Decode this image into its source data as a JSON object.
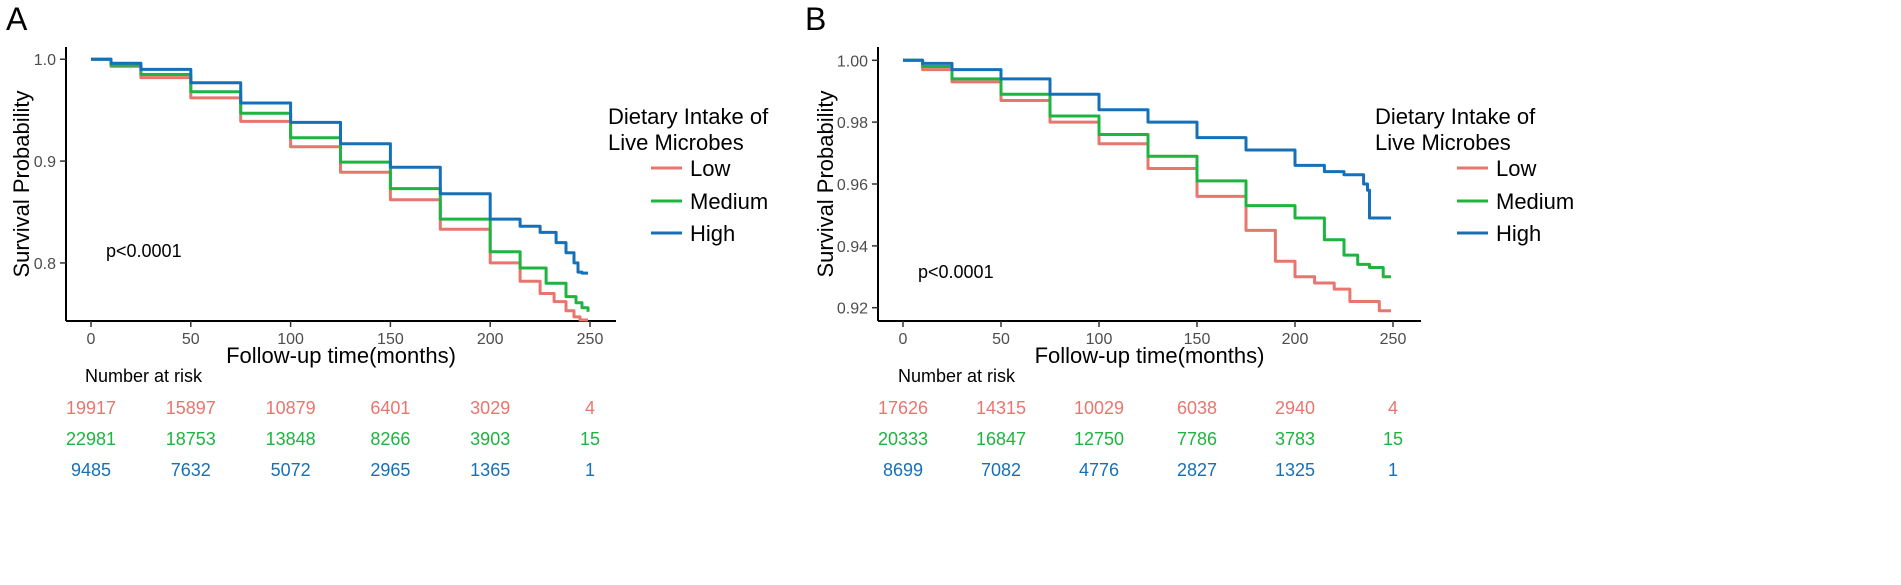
{
  "colors": {
    "low": "#E8766E",
    "medium": "#1DB440",
    "high": "#1670B7",
    "axis": "#000000"
  },
  "chart_data": [
    {
      "type": "line",
      "panel_label": "A",
      "xlabel": "Follow-up time(months)",
      "ylabel": "Survival Probability",
      "xlim": [
        0,
        250
      ],
      "ylim": [
        0.743,
        1.012
      ],
      "x_ticks": [
        0,
        50,
        100,
        150,
        200,
        250
      ],
      "y_ticks": [
        "1.0",
        "0.9",
        "0.8"
      ],
      "y_tick_values": [
        1.0,
        0.9,
        0.8
      ],
      "p_value": "p<0.0001",
      "legend": {
        "title_line1": "Dietary Intake of",
        "title_line2": "Live Microbes",
        "entries": [
          "Low",
          "Medium",
          "High"
        ]
      },
      "series": [
        {
          "name": "Low",
          "color_key": "low",
          "x": [
            0,
            10,
            25,
            50,
            75,
            100,
            125,
            150,
            175,
            200,
            215,
            225,
            232,
            238,
            242,
            245,
            249
          ],
          "y": [
            1.0,
            0.993,
            0.982,
            0.962,
            0.939,
            0.914,
            0.889,
            0.862,
            0.833,
            0.8,
            0.782,
            0.77,
            0.762,
            0.753,
            0.747,
            0.744,
            0.744
          ]
        },
        {
          "name": "Medium",
          "color_key": "medium",
          "x": [
            0,
            10,
            25,
            50,
            75,
            100,
            125,
            150,
            175,
            200,
            215,
            228,
            238,
            243,
            246,
            249
          ],
          "y": [
            1.0,
            0.994,
            0.985,
            0.968,
            0.947,
            0.923,
            0.899,
            0.873,
            0.843,
            0.811,
            0.795,
            0.78,
            0.767,
            0.761,
            0.756,
            0.752
          ]
        },
        {
          "name": "High",
          "color_key": "high",
          "x": [
            0,
            10,
            25,
            50,
            75,
            100,
            125,
            150,
            175,
            200,
            215,
            225,
            233,
            238,
            242,
            244,
            246,
            249
          ],
          "y": [
            1.0,
            0.996,
            0.99,
            0.977,
            0.957,
            0.938,
            0.917,
            0.894,
            0.868,
            0.843,
            0.836,
            0.83,
            0.82,
            0.81,
            0.8,
            0.791,
            0.79,
            0.79
          ]
        }
      ],
      "risk_table": {
        "title": "Number at risk",
        "times": [
          0,
          50,
          100,
          150,
          200,
          250
        ],
        "rows": [
          {
            "color_key": "low",
            "values": [
              "19917",
              "15897",
              "10879",
              "6401",
              "3029",
              "4"
            ]
          },
          {
            "color_key": "medium",
            "values": [
              "22981",
              "18753",
              "13848",
              "8266",
              "3903",
              "15"
            ]
          },
          {
            "color_key": "high",
            "values": [
              "9485",
              "7632",
              "5072",
              "2965",
              "1365",
              "1"
            ]
          }
        ]
      }
    },
    {
      "type": "line",
      "panel_label": "B",
      "xlabel": "Follow-up time(months)",
      "ylabel": "Survival Probability",
      "xlim": [
        0,
        250
      ],
      "ylim": [
        0.9157,
        1.0043
      ],
      "x_ticks": [
        0,
        50,
        100,
        150,
        200,
        250
      ],
      "y_ticks": [
        "1.00",
        "0.98",
        "0.96",
        "0.94",
        "0.92"
      ],
      "y_tick_values": [
        1.0,
        0.98,
        0.96,
        0.94,
        0.92
      ],
      "p_value": "p<0.0001",
      "legend": {
        "title_line1": "Dietary Intake of",
        "title_line2": "Live Microbes",
        "entries": [
          "Low",
          "Medium",
          "High"
        ]
      },
      "series": [
        {
          "name": "Low",
          "color_key": "low",
          "x": [
            0,
            10,
            25,
            50,
            75,
            100,
            125,
            150,
            175,
            190,
            200,
            210,
            220,
            228,
            235,
            240,
            243,
            249
          ],
          "y": [
            1.0,
            0.997,
            0.993,
            0.987,
            0.98,
            0.973,
            0.965,
            0.956,
            0.945,
            0.935,
            0.93,
            0.928,
            0.926,
            0.922,
            0.922,
            0.922,
            0.919,
            0.919
          ]
        },
        {
          "name": "Medium",
          "color_key": "medium",
          "x": [
            0,
            10,
            25,
            50,
            75,
            100,
            125,
            150,
            175,
            200,
            215,
            225,
            232,
            238,
            242,
            245,
            249
          ],
          "y": [
            1.0,
            0.998,
            0.994,
            0.989,
            0.982,
            0.976,
            0.969,
            0.961,
            0.953,
            0.949,
            0.942,
            0.937,
            0.934,
            0.933,
            0.933,
            0.93,
            0.93
          ]
        },
        {
          "name": "High",
          "color_key": "high",
          "x": [
            0,
            10,
            25,
            50,
            75,
            100,
            125,
            150,
            175,
            200,
            215,
            225,
            232,
            235,
            237,
            238,
            242,
            249
          ],
          "y": [
            1.0,
            0.999,
            0.997,
            0.994,
            0.989,
            0.984,
            0.98,
            0.975,
            0.971,
            0.966,
            0.964,
            0.963,
            0.963,
            0.96,
            0.958,
            0.949,
            0.949,
            0.949
          ]
        }
      ],
      "risk_table": {
        "title": "Number at risk",
        "times": [
          0,
          50,
          100,
          150,
          200,
          250
        ],
        "rows": [
          {
            "color_key": "low",
            "values": [
              "17626",
              "14315",
              "10029",
              "6038",
              "2940",
              "4"
            ]
          },
          {
            "color_key": "medium",
            "values": [
              "20333",
              "16847",
              "12750",
              "7786",
              "3783",
              "15"
            ]
          },
          {
            "color_key": "high",
            "values": [
              "8699",
              "7082",
              "4776",
              "2827",
              "1325",
              "1"
            ]
          }
        ]
      }
    }
  ]
}
